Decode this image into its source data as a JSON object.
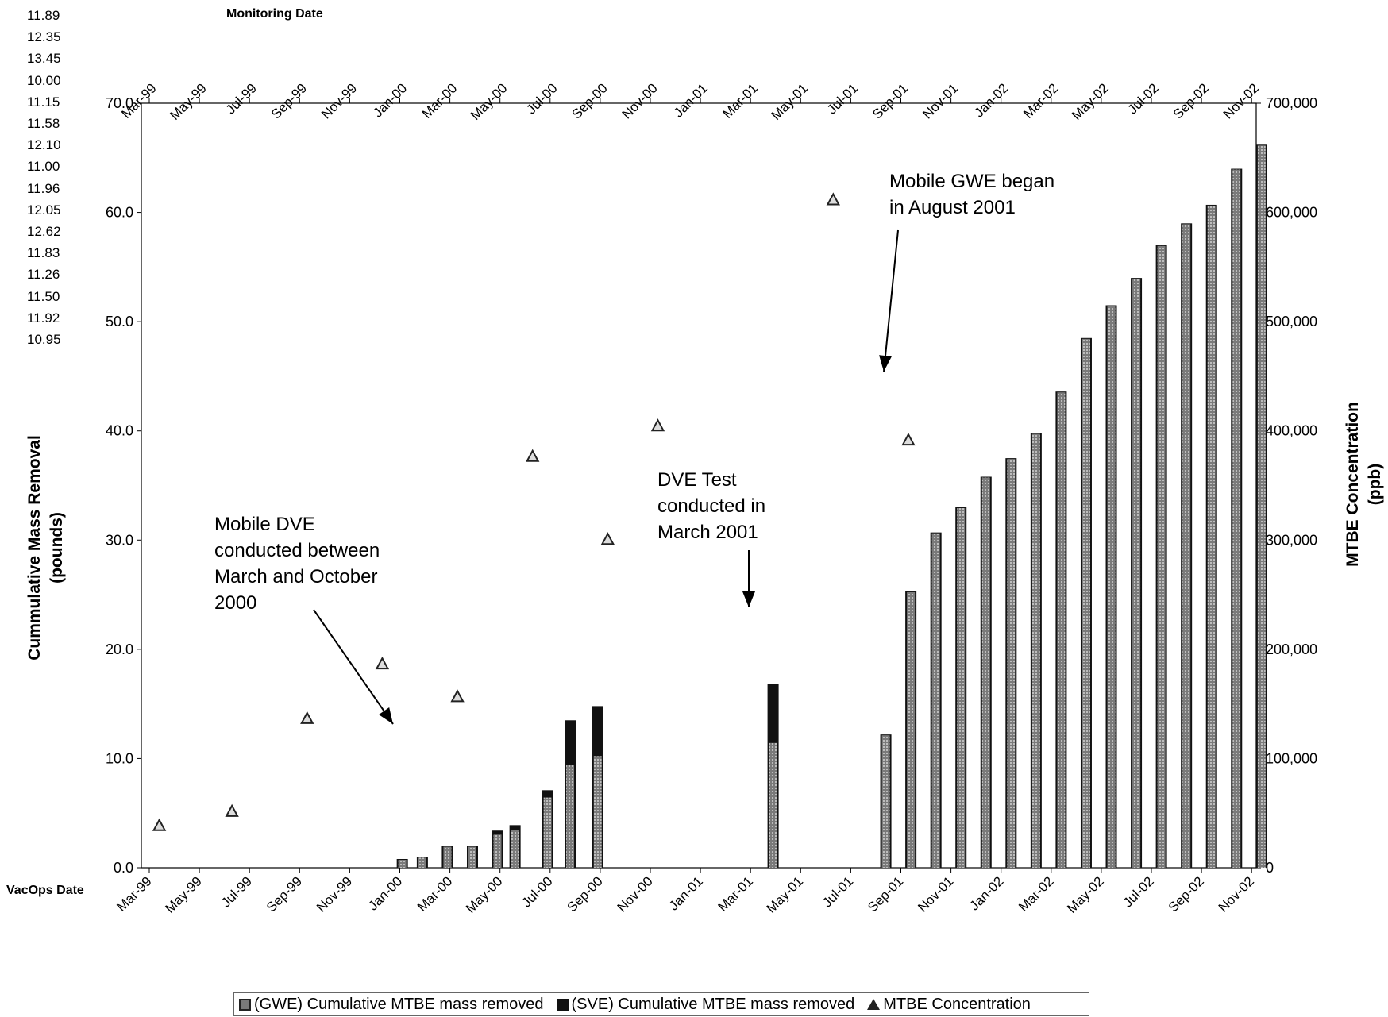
{
  "side_values": [
    "11.89",
    "12.35",
    "13.45",
    "10.00",
    "11.15",
    "11.58",
    "12.10",
    "11.00",
    "11.96",
    "12.05",
    "12.62",
    "11.83",
    "11.26",
    "11.50",
    "11.92",
    "10.95"
  ],
  "chart_data": {
    "type": "bar",
    "top_axis_title": "Monitoring Date",
    "bottom_axis_title": "VacOps Date",
    "categories": [
      "Mar-99",
      "May-99",
      "Jul-99",
      "Sep-99",
      "Nov-99",
      "Jan-00",
      "Mar-00",
      "May-00",
      "Jul-00",
      "Sep-00",
      "Nov-00",
      "Jan-01",
      "Mar-01",
      "May-01",
      "Jul-01",
      "Sep-01",
      "Nov-01",
      "Jan-02",
      "Mar-02",
      "May-02",
      "Jul-02",
      "Sep-02",
      "Nov-02"
    ],
    "ylabel_left": "Cummulative Mass Removal\n(pounds)",
    "ylabel_right": "MTBE Concentration\n(ppb)",
    "ylim_left": [
      0,
      70
    ],
    "ylim_right": [
      0,
      700000
    ],
    "left_ticks": [
      "0.0",
      "10.0",
      "20.0",
      "30.0",
      "40.0",
      "50.0",
      "60.0",
      "70.0"
    ],
    "right_ticks": [
      "0",
      "100,000",
      "200,000",
      "300,000",
      "400,000",
      "500,000",
      "600,000",
      "700,000"
    ],
    "bars": [
      {
        "date": 10.1,
        "gwe": 0.8,
        "sve": 0.8
      },
      {
        "date": 10.9,
        "gwe": 1.0,
        "sve": 1.0
      },
      {
        "date": 11.9,
        "gwe": 2.0,
        "sve": 2.0
      },
      {
        "date": 12.9,
        "gwe": 2.0,
        "sve": 2.0
      },
      {
        "date": 13.9,
        "gwe": 3.1,
        "sve": 3.4
      },
      {
        "date": 14.6,
        "gwe": 3.5,
        "sve": 3.9
      },
      {
        "date": 15.9,
        "gwe": 6.5,
        "sve": 7.1
      },
      {
        "date": 16.8,
        "gwe": 9.5,
        "sve": 13.5
      },
      {
        "date": 17.9,
        "gwe": 10.3,
        "sve": 14.8
      },
      {
        "date": 24.9,
        "gwe": 11.5,
        "sve": 16.8
      },
      {
        "date": 29.4,
        "gwe": 12.2,
        "sve": 12.2
      },
      {
        "date": 30.4,
        "gwe": 25.3,
        "sve": 25.3
      },
      {
        "date": 31.4,
        "gwe": 30.7,
        "sve": 30.7
      },
      {
        "date": 32.4,
        "gwe": 33.0,
        "sve": 33.0
      },
      {
        "date": 33.4,
        "gwe": 35.8,
        "sve": 35.8
      },
      {
        "date": 34.4,
        "gwe": 37.5,
        "sve": 37.5
      },
      {
        "date": 35.4,
        "gwe": 39.8,
        "sve": 39.8
      },
      {
        "date": 36.4,
        "gwe": 43.6,
        "sve": 43.6
      },
      {
        "date": 37.4,
        "gwe": 48.5,
        "sve": 48.5
      },
      {
        "date": 38.4,
        "gwe": 51.5,
        "sve": 51.5
      },
      {
        "date": 39.4,
        "gwe": 54.0,
        "sve": 54.0
      },
      {
        "date": 40.4,
        "gwe": 57.0,
        "sve": 57.0
      },
      {
        "date": 41.4,
        "gwe": 59.0,
        "sve": 59.0
      },
      {
        "date": 42.4,
        "gwe": 60.7,
        "sve": 60.7
      },
      {
        "date": 43.4,
        "gwe": 64.0,
        "sve": 64.0
      },
      {
        "date": 44.4,
        "gwe": 66.2,
        "sve": 66.2
      }
    ],
    "concentration": [
      {
        "date": 0.4,
        "ppb": 38000
      },
      {
        "date": 3.3,
        "ppb": 51000
      },
      {
        "date": 6.3,
        "ppb": 136000
      },
      {
        "date": 9.3,
        "ppb": 186000
      },
      {
        "date": 12.3,
        "ppb": 156000
      },
      {
        "date": 15.3,
        "ppb": 376000
      },
      {
        "date": 18.3,
        "ppb": 300000
      },
      {
        "date": 20.3,
        "ppb": 404000
      },
      {
        "date": 27.3,
        "ppb": 611000
      },
      {
        "date": 30.3,
        "ppb": 391000
      }
    ],
    "annotations": [
      {
        "text": [
          "Mobile DVE",
          "conducted between",
          "March and October",
          "2000"
        ]
      },
      {
        "text": [
          "DVE Test",
          "conducted in",
          "March 2001"
        ]
      },
      {
        "text": [
          "Mobile GWE began",
          "in August 2001"
        ]
      }
    ],
    "legend": [
      "(GWE) Cumulative MTBE mass removed",
      "(SVE) Cumulative MTBE mass removed",
      "MTBE Concentration"
    ],
    "colors": {
      "gwe": "#7a7a7a",
      "sve": "#111111",
      "marker": "#222222"
    }
  }
}
